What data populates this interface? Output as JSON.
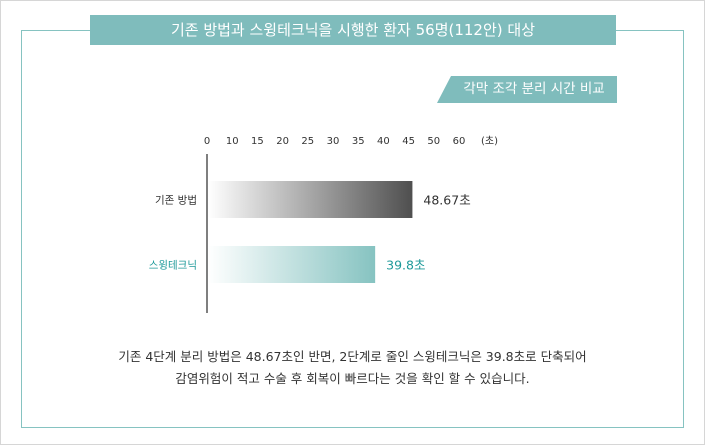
{
  "header": {
    "title": "기존 방법과 스윙테크닉을 시행한 환자 56명(112안) 대상"
  },
  "section_tag": {
    "label": "각막 조각 분리 시간 비교"
  },
  "colors": {
    "accent": "#7fbcbc",
    "frame": "#86c3c1",
    "existing_bar_end": "#4f4f4f",
    "swing_bar_end": "#86c3c1",
    "swing_text": "#1e9a9a"
  },
  "chart_data": {
    "type": "bar",
    "orientation": "horizontal",
    "categories": [
      "기존 방법",
      "스윙테크닉"
    ],
    "values": [
      48.67,
      39.8
    ],
    "value_labels": [
      "48.67초",
      "39.8초"
    ],
    "x_ticks": [
      0,
      10,
      15,
      20,
      25,
      30,
      35,
      40,
      45,
      50,
      60
    ],
    "x_unit_label": "(초)",
    "xlim": [
      0,
      60
    ],
    "title": "각막 조각 분리 시간 비교",
    "grid": false
  },
  "footnote": {
    "line1": "기존 4단계 분리 방법은 48.67초인 반면, 2단계로 줄인 스윙테크닉은 39.8초로 단축되어",
    "line2": "감염위험이 적고 수술 후 회복이 빠르다는 것을 확인 할 수 있습니다."
  }
}
